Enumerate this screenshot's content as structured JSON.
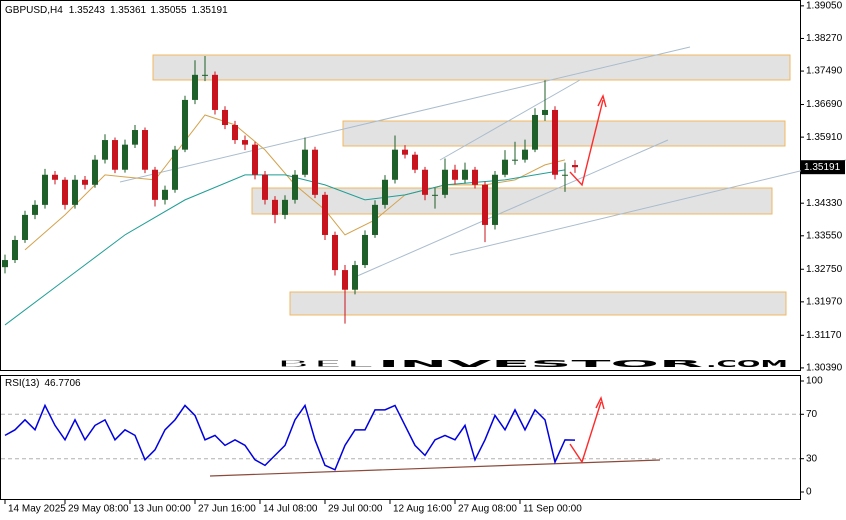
{
  "chart_data": [
    {
      "type": "candlestick",
      "title": "GBPUSD,H4",
      "open": [
        1.328,
        1.3297,
        1.3345,
        1.3405,
        1.3429,
        1.3501,
        1.3489,
        1.3429,
        1.3489,
        1.3477,
        1.3537,
        1.3584,
        1.3513,
        1.3573,
        1.3608,
        1.3513,
        1.3441,
        1.3465,
        1.3561,
        1.368,
        1.374,
        1.374,
        1.3656,
        1.362,
        1.3584,
        1.3573,
        1.3501,
        1.3441,
        1.3405,
        1.3441,
        1.3501,
        1.3561,
        1.3453,
        1.3357,
        1.3273,
        1.3226,
        1.3285,
        1.3357,
        1.3429,
        1.3489,
        1.3561,
        1.3549,
        1.3513,
        1.3453,
        1.3453,
        1.3513,
        1.3489,
        1.3513,
        1.3477,
        1.3381,
        1.3501,
        1.3537,
        1.3537,
        1.3561,
        1.3644,
        1.3656,
        1.3501,
        1.35243
      ],
      "high": [
        1.331,
        1.3355,
        1.3415,
        1.344,
        1.3515,
        1.351,
        1.3495,
        1.35,
        1.3498,
        1.3548,
        1.3598,
        1.359,
        1.3585,
        1.362,
        1.3614,
        1.352,
        1.3475,
        1.357,
        1.369,
        1.3775,
        1.3785,
        1.3748,
        1.3665,
        1.363,
        1.3595,
        1.358,
        1.351,
        1.345,
        1.3452,
        1.3512,
        1.359,
        1.3568,
        1.346,
        1.3365,
        1.3285,
        1.3295,
        1.3368,
        1.344,
        1.35,
        1.3595,
        1.3572,
        1.3556,
        1.352,
        1.347,
        1.354,
        1.3525,
        1.353,
        1.352,
        1.3485,
        1.351,
        1.356,
        1.358,
        1.3585,
        1.366,
        1.3727,
        1.3665,
        1.353,
        1.35361
      ],
      "low": [
        1.3265,
        1.329,
        1.3338,
        1.3395,
        1.342,
        1.3478,
        1.3418,
        1.342,
        1.3466,
        1.347,
        1.3528,
        1.3505,
        1.3506,
        1.3565,
        1.3505,
        1.3425,
        1.343,
        1.3458,
        1.3555,
        1.367,
        1.3725,
        1.3645,
        1.361,
        1.3575,
        1.356,
        1.349,
        1.343,
        1.3385,
        1.3395,
        1.3432,
        1.3495,
        1.3445,
        1.3345,
        1.326,
        1.3145,
        1.3215,
        1.3278,
        1.335,
        1.342,
        1.348,
        1.354,
        1.3505,
        1.344,
        1.342,
        1.3445,
        1.3478,
        1.348,
        1.3468,
        1.334,
        1.337,
        1.3495,
        1.3525,
        1.353,
        1.3555,
        1.363,
        1.349,
        1.346,
        1.35055
      ],
      "close": [
        1.3297,
        1.3345,
        1.3405,
        1.3429,
        1.3501,
        1.3489,
        1.3429,
        1.3489,
        1.3477,
        1.3537,
        1.3584,
        1.3513,
        1.3573,
        1.3608,
        1.3513,
        1.3441,
        1.3465,
        1.3561,
        1.368,
        1.374,
        1.374,
        1.3656,
        1.362,
        1.3584,
        1.3573,
        1.3501,
        1.3441,
        1.3405,
        1.3441,
        1.3501,
        1.3561,
        1.3453,
        1.3357,
        1.3273,
        1.3226,
        1.3285,
        1.3357,
        1.3429,
        1.3489,
        1.3561,
        1.3549,
        1.3513,
        1.3453,
        1.3453,
        1.3513,
        1.3489,
        1.3513,
        1.3477,
        1.3381,
        1.3501,
        1.3537,
        1.3537,
        1.3561,
        1.3644,
        1.3656,
        1.3501,
        1.3501,
        1.35191
      ],
      "up_color": "#1f5f2a",
      "down_color": "#c8141e",
      "overlays": [
        {
          "color": "#d4a24c",
          "x": [
            2,
            6,
            10,
            15,
            20,
            23,
            26,
            29,
            32,
            34,
            37,
            40,
            44,
            48,
            51,
            54,
            56
          ],
          "values": [
            1.33213,
            1.3405,
            1.35007,
            1.34887,
            1.3644,
            1.36203,
            1.35605,
            1.34768,
            1.3417,
            1.33572,
            1.3393,
            1.34528,
            1.34768,
            1.34768,
            1.34887,
            1.35246,
            1.35366
          ]
        },
        {
          "color": "#1f9e95",
          "x": [
            0,
            6,
            12,
            18,
            24,
            28,
            32,
            36,
            40,
            44,
            50,
            56
          ],
          "values": [
            1.31418,
            1.32495,
            1.33572,
            1.34409,
            1.35007,
            1.35007,
            1.34768,
            1.34409,
            1.34528,
            1.34768,
            1.34887,
            1.35127
          ]
        }
      ],
      "xlim": [
        -0.5,
        79.5
      ],
      "ylim": [
        1.3034,
        1.3919
      ],
      "yticks": [
        {
          "value": 1.3905,
          "label": "1.39050"
        },
        {
          "value": 1.3827,
          "label": "1.38270"
        },
        {
          "value": 1.3749,
          "label": "1.37490"
        },
        {
          "value": 1.3669,
          "label": "1.36690"
        },
        {
          "value": 1.3591,
          "label": "1.35910"
        },
        {
          "value": 1.3433,
          "label": "1.34330"
        },
        {
          "value": 1.3355,
          "label": "1.33550"
        },
        {
          "value": 1.3275,
          "label": "1.32750"
        },
        {
          "value": 1.3197,
          "label": "1.31970"
        },
        {
          "value": 1.3117,
          "label": "1.31170"
        },
        {
          "value": 1.3039,
          "label": "1.30390"
        }
      ]
    },
    {
      "type": "line",
      "title": "RSI(13)",
      "color": "#0000e0",
      "values": [
        51,
        56,
        65,
        56,
        78,
        60,
        47,
        65,
        47,
        60,
        65,
        47,
        56,
        51,
        29,
        38,
        56,
        65,
        78,
        69,
        47,
        51,
        42,
        47,
        42,
        29,
        24,
        33,
        42,
        65,
        78,
        47,
        24,
        20,
        42,
        56,
        56,
        74,
        74,
        78,
        60,
        42,
        33,
        47,
        51,
        47,
        60,
        29,
        47,
        69,
        56,
        74,
        56,
        74,
        65,
        27,
        47,
        46.7706
      ],
      "levels": [
        30,
        70
      ],
      "xlim": [
        -0.5,
        79.5
      ],
      "ylim": [
        -7.2,
        105.4
      ],
      "yticks": [
        0,
        30,
        70,
        100
      ],
      "xticks": [
        {
          "value": 0,
          "label": "14 May 2025"
        },
        {
          "value": 6,
          "label": "29 May 08:00"
        },
        {
          "value": 12.5,
          "label": "13 Jun 00:00"
        },
        {
          "value": 19,
          "label": "27 Jun 16:00"
        },
        {
          "value": 25.5,
          "label": "14 Jul 08:00"
        },
        {
          "value": 32,
          "label": "29 Jul 00:00"
        },
        {
          "value": 38.5,
          "label": "12 Aug 16:00"
        },
        {
          "value": 45,
          "label": "27 Aug 08:00"
        },
        {
          "value": 51.5,
          "label": "11 Sep 00:00"
        }
      ]
    }
  ],
  "watermark": {
    "part1": "BEL",
    "part2": "INVESTOR",
    "part3": ".COM"
  }
}
